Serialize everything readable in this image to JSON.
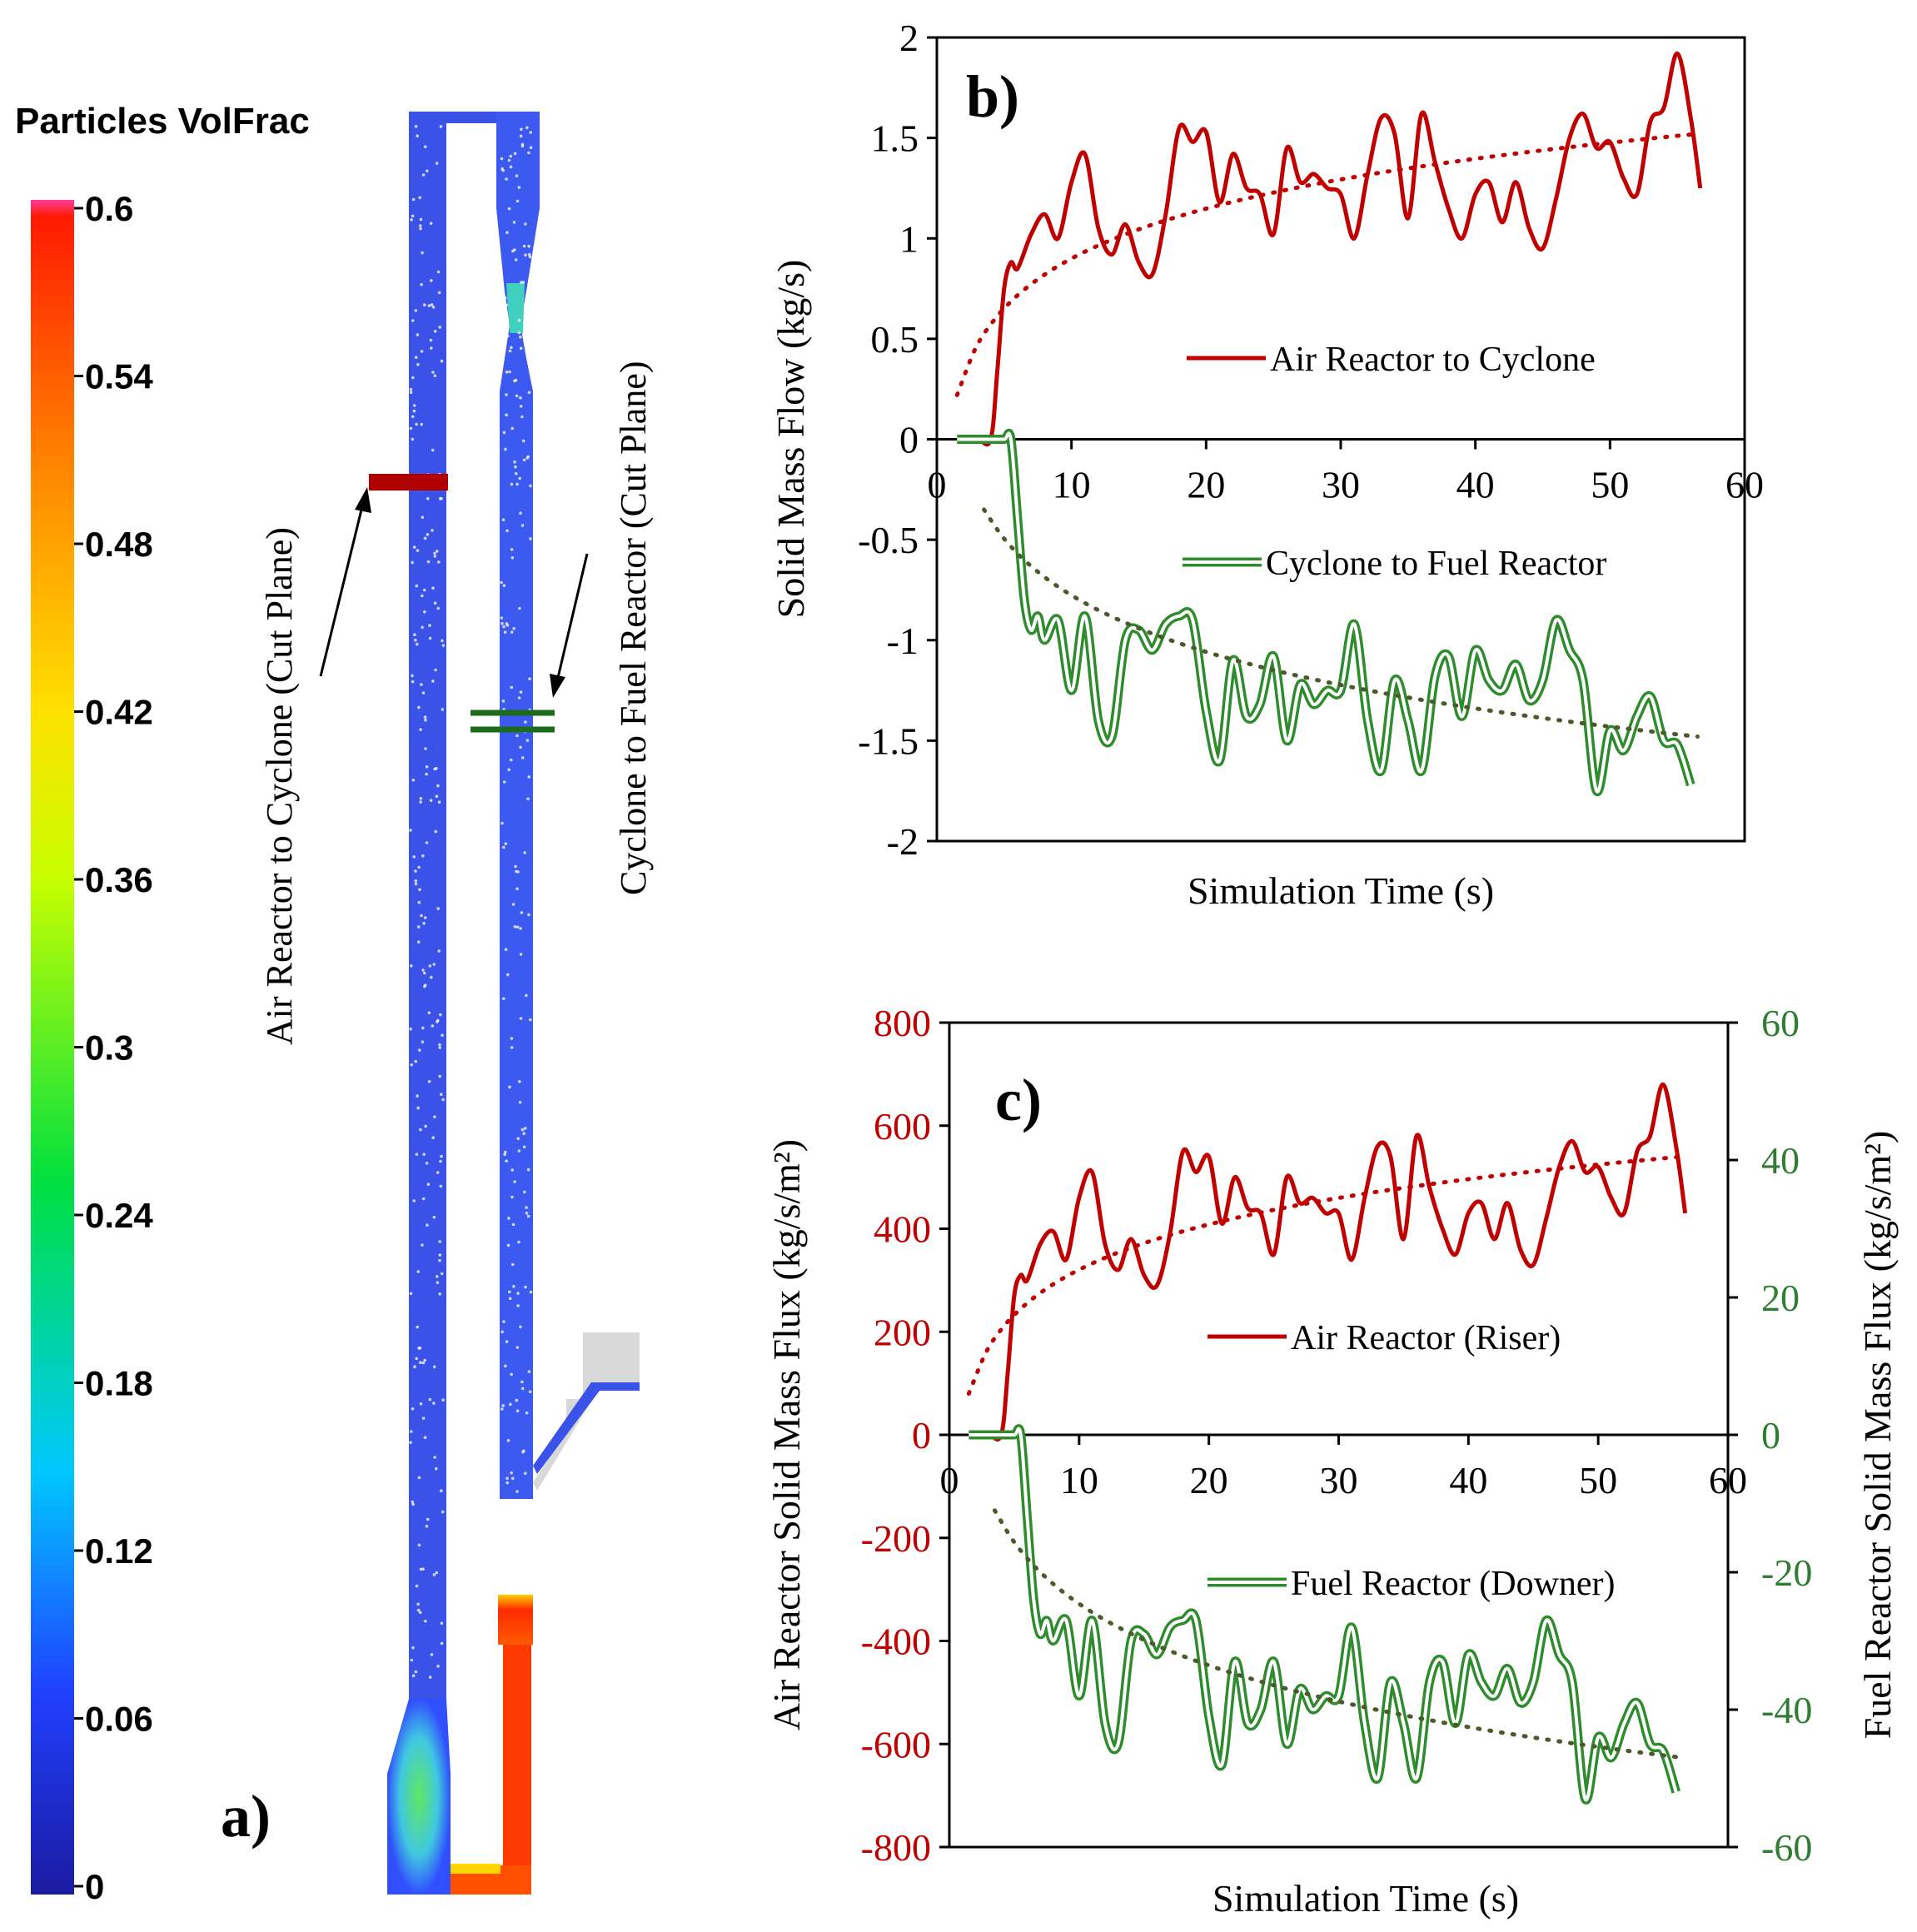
{
  "panel_a": {
    "colorbar_title": "Particles VolFrac",
    "ticks": [
      "0.6",
      "0.54",
      "0.48",
      "0.42",
      "0.36",
      "0.3",
      "0.24",
      "0.18",
      "0.12",
      "0.06",
      "0"
    ],
    "tick_values": [
      0.6,
      0.54,
      0.48,
      0.42,
      0.36,
      0.3,
      0.24,
      0.18,
      0.12,
      0.06,
      0
    ],
    "range": [
      0,
      0.6
    ],
    "cut_plane_air": "Air Reactor to Cyclone  (Cut Plane)",
    "cut_plane_fuel": "Cyclone to  Fuel Reactor (Cut Plane)",
    "panel_label": "a)"
  },
  "chart_data": [
    {
      "id": "b",
      "type": "line",
      "panel_label": "b)",
      "title": "",
      "xlabel": "Simulation Time (s)",
      "ylabel": "Solid Mass Flow  (kg/s)",
      "xlim": [
        0,
        60
      ],
      "ylim": [
        -2,
        2
      ],
      "xticks": [
        0,
        10,
        20,
        30,
        40,
        50,
        60
      ],
      "yticks": [
        2,
        1.5,
        1,
        0.5,
        0,
        -0.5,
        -1,
        -1.5,
        -2
      ],
      "ytick_labels": [
        "2",
        "1.5",
        "1",
        "0.5",
        "0",
        "-0.5",
        "-1",
        "-1.5",
        "-2"
      ],
      "legend_placement": "center",
      "series": [
        {
          "name": "Air Reactor to Cyclone",
          "color": "#c00000",
          "style": "solid",
          "x": [
            1.5,
            3,
            4,
            4.5,
            5,
            5.5,
            6,
            7,
            8,
            9,
            10,
            11,
            12,
            13,
            14,
            15,
            16,
            17,
            18,
            19,
            20,
            21,
            22,
            23,
            24,
            25,
            26,
            27,
            28,
            29,
            30,
            31,
            32,
            33,
            34,
            35,
            36,
            37,
            38,
            39,
            40,
            41,
            42,
            43,
            44,
            45,
            46,
            47,
            48,
            49,
            50,
            51,
            52,
            53,
            54,
            55,
            56,
            56.7
          ],
          "y": [
            0,
            0,
            0,
            0.35,
            0.75,
            0.88,
            0.85,
            1.02,
            1.12,
            1.0,
            1.28,
            1.42,
            1.05,
            0.92,
            1.07,
            0.88,
            0.82,
            1.12,
            1.55,
            1.48,
            1.53,
            1.18,
            1.42,
            1.25,
            1.22,
            1.02,
            1.45,
            1.28,
            1.32,
            1.25,
            1.22,
            1.0,
            1.32,
            1.6,
            1.52,
            1.1,
            1.62,
            1.38,
            1.15,
            1.0,
            1.22,
            1.28,
            1.08,
            1.28,
            1.05,
            0.95,
            1.2,
            1.5,
            1.62,
            1.45,
            1.48,
            1.3,
            1.22,
            1.58,
            1.65,
            1.92,
            1.6,
            1.25
          ]
        },
        {
          "name": "Cyclone to Fuel Reactor",
          "color": "#2e8b2e",
          "style": "double",
          "x": [
            1.5,
            3,
            4,
            5,
            5.5,
            6,
            6.5,
            7,
            7.5,
            8,
            9,
            10,
            11,
            12,
            13,
            14,
            15,
            16,
            17,
            18,
            19,
            20,
            21,
            22,
            23,
            24,
            25,
            26,
            27,
            28,
            29,
            30,
            31,
            32,
            33,
            34,
            35,
            36,
            37,
            38,
            39,
            40,
            41,
            42,
            43,
            44,
            45,
            46,
            47,
            48,
            49,
            50,
            51,
            52,
            53,
            54,
            55,
            56
          ],
          "y": [
            0,
            0,
            0,
            0,
            0,
            -0.4,
            -0.8,
            -0.95,
            -0.88,
            -1.0,
            -0.9,
            -1.25,
            -0.88,
            -1.4,
            -1.48,
            -1.0,
            -0.95,
            -1.05,
            -0.92,
            -0.88,
            -0.9,
            -1.35,
            -1.6,
            -1.1,
            -1.38,
            -1.32,
            -1.08,
            -1.5,
            -1.22,
            -1.32,
            -1.25,
            -1.25,
            -0.92,
            -1.4,
            -1.65,
            -1.2,
            -1.4,
            -1.65,
            -1.18,
            -1.08,
            -1.38,
            -1.05,
            -1.2,
            -1.25,
            -1.12,
            -1.3,
            -1.2,
            -0.9,
            -1.05,
            -1.2,
            -1.75,
            -1.45,
            -1.55,
            -1.38,
            -1.28,
            -1.5,
            -1.52,
            -1.72
          ]
        },
        {
          "name": "Air Reactor to Cyclone (trend)",
          "color": "#c00000",
          "style": "dotted",
          "trend": "log",
          "from": 1.5,
          "to": 56.5,
          "start_value": 0.22,
          "end_value": 1.52
        },
        {
          "name": "Cyclone to Fuel Reactor (trend)",
          "color": "#4a5a2a",
          "style": "dotted",
          "trend": "log",
          "from": 3.5,
          "to": 56.5,
          "start_value": -0.35,
          "end_value": -1.48
        }
      ]
    },
    {
      "id": "c",
      "type": "line",
      "panel_label": "c)",
      "title": "",
      "xlabel": "Simulation Time (s)",
      "ylabel": "Air Reactor  Solid Mass Flux (kg/s/m²)",
      "y2label": "Fuel Reactor  Solid Mass Flux (kg/s/m²)",
      "xlim": [
        0,
        60
      ],
      "ylim": [
        -800,
        800
      ],
      "y2lim": [
        -60,
        60
      ],
      "xticks": [
        0,
        10,
        20,
        30,
        40,
        50,
        60
      ],
      "yticks": [
        800,
        600,
        400,
        200,
        0,
        -200,
        -400,
        -600,
        -800
      ],
      "ytick_labels": [
        "800",
        "600",
        "400",
        "200",
        "0",
        "-200",
        "-400",
        "-600",
        "-800"
      ],
      "y2ticks": [
        60,
        40,
        20,
        0,
        -20,
        -40,
        -60
      ],
      "y2tick_labels": [
        "60",
        "40",
        "20",
        "0",
        "-20",
        "-40",
        "-60"
      ],
      "ylabel_color": "#c00000",
      "y2label_color": "#2e7d32",
      "legend_placement": "center",
      "series": [
        {
          "name": "Air Reactor (Riser)",
          "color": "#c00000",
          "style": "solid",
          "axis": "left",
          "x": [
            1.5,
            3,
            4,
            4.5,
            5,
            5.5,
            6,
            7,
            8,
            9,
            10,
            11,
            12,
            13,
            14,
            15,
            16,
            17,
            18,
            19,
            20,
            21,
            22,
            23,
            24,
            25,
            26,
            27,
            28,
            29,
            30,
            31,
            32,
            33,
            34,
            35,
            36,
            37,
            38,
            39,
            40,
            41,
            42,
            43,
            44,
            45,
            46,
            47,
            48,
            49,
            50,
            51,
            52,
            53,
            54,
            55,
            56,
            56.7
          ],
          "y": [
            0,
            0,
            0,
            120,
            270,
            310,
            300,
            370,
            395,
            340,
            460,
            510,
            370,
            320,
            380,
            310,
            290,
            390,
            550,
            510,
            540,
            410,
            500,
            440,
            430,
            350,
            500,
            450,
            460,
            430,
            430,
            340,
            460,
            560,
            540,
            380,
            580,
            480,
            400,
            350,
            430,
            450,
            380,
            450,
            360,
            330,
            420,
            520,
            570,
            510,
            520,
            460,
            430,
            550,
            580,
            680,
            560,
            430
          ]
        },
        {
          "name": "Fuel Reactor (Downer)",
          "color": "#2e8b2e",
          "style": "double",
          "axis": "right",
          "x": [
            1.5,
            3,
            4,
            5,
            5.5,
            6,
            6.5,
            7,
            7.5,
            8,
            9,
            10,
            11,
            12,
            13,
            14,
            15,
            16,
            17,
            18,
            19,
            20,
            21,
            22,
            23,
            24,
            25,
            26,
            27,
            28,
            29,
            30,
            31,
            32,
            33,
            34,
            35,
            36,
            37,
            38,
            39,
            40,
            41,
            42,
            43,
            44,
            45,
            46,
            47,
            48,
            49,
            50,
            51,
            52,
            53,
            54,
            55,
            56
          ],
          "y": [
            0,
            0,
            0,
            0,
            0,
            -12,
            -24,
            -29,
            -27,
            -30,
            -27,
            -38,
            -27,
            -42,
            -45,
            -30,
            -29,
            -32,
            -28,
            -27,
            -27,
            -41,
            -48,
            -33,
            -42,
            -40,
            -33,
            -45,
            -37,
            -40,
            -38,
            -38,
            -28,
            -42,
            -50,
            -36,
            -42,
            -50,
            -36,
            -33,
            -42,
            -32,
            -36,
            -38,
            -34,
            -39,
            -36,
            -27,
            -32,
            -36,
            -53,
            -44,
            -47,
            -42,
            -39,
            -45,
            -46,
            -52
          ]
        },
        {
          "name": "Air Reactor (Riser) (trend)",
          "color": "#c00000",
          "style": "dotted",
          "trend": "log",
          "axis": "left",
          "from": 1.5,
          "to": 56.5,
          "start_value": 80,
          "end_value": 540
        },
        {
          "name": "Fuel Reactor (Downer) (trend)",
          "color": "#4a5a2a",
          "style": "dotted",
          "trend": "log",
          "axis": "right",
          "from": 3.5,
          "to": 56.5,
          "start_value": -11,
          "end_value": -47
        }
      ]
    }
  ]
}
